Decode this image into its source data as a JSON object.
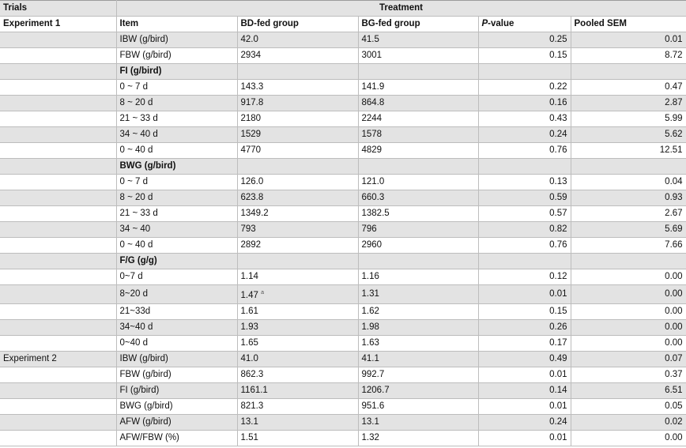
{
  "header": {
    "trials": "Trials",
    "treatment": "Treatment",
    "experiment1": "Experiment 1",
    "item": "Item",
    "bd": "BD-fed group",
    "bg": "BG-fed group",
    "p_italic": "P",
    "p_rest": "-value",
    "sem": "Pooled SEM"
  },
  "rows": [
    {
      "trial": "",
      "item": "IBW (g/bird)",
      "bd": "42.0",
      "bg": "41.5",
      "p": "0.25",
      "sem": "0.01",
      "shade": true
    },
    {
      "trial": "",
      "item": "FBW (g/bird)",
      "bd": "2934",
      "bg": "3001",
      "p": "0.15",
      "sem": "8.72",
      "shade": false
    },
    {
      "trial": "",
      "item": "FI (g/bird)",
      "bd": "",
      "bg": "",
      "p": "",
      "sem": "",
      "shade": true,
      "section": true
    },
    {
      "trial": "",
      "item": "0 ~ 7 d",
      "bd": "143.3",
      "bg": "141.9",
      "p": "0.22",
      "sem": "0.47",
      "shade": false
    },
    {
      "trial": "",
      "item": "8 ~ 20 d",
      "bd": "917.8",
      "bg": "864.8",
      "p": "0.16",
      "sem": "2.87",
      "shade": true
    },
    {
      "trial": "",
      "item": "21 ~ 33 d",
      "bd": "2180",
      "bg": "2244",
      "p": "0.43",
      "sem": "5.99",
      "shade": false
    },
    {
      "trial": "",
      "item": "34 ~ 40 d",
      "bd": "1529",
      "bg": "1578",
      "p": "0.24",
      "sem": "5.62",
      "shade": true
    },
    {
      "trial": "",
      "item": "0 ~ 40 d",
      "bd": "4770",
      "bg": "4829",
      "p": "0.76",
      "sem": "12.51",
      "shade": false
    },
    {
      "trial": "",
      "item": "BWG (g/bird)",
      "bd": "",
      "bg": "",
      "p": "",
      "sem": "",
      "shade": true,
      "section": true
    },
    {
      "trial": "",
      "item": "0 ~ 7 d",
      "bd": "126.0",
      "bg": "121.0",
      "p": "0.13",
      "sem": "0.04",
      "shade": false
    },
    {
      "trial": "",
      "item": "8 ~ 20 d",
      "bd": "623.8",
      "bg": "660.3",
      "p": "0.59",
      "sem": "0.93",
      "shade": true
    },
    {
      "trial": "",
      "item": "21 ~ 33 d",
      "bd": "1349.2",
      "bg": "1382.5",
      "p": "0.57",
      "sem": "2.67",
      "shade": false
    },
    {
      "trial": "",
      "item": "34 ~ 40",
      "bd": "793",
      "bg": "796",
      "p": "0.82",
      "sem": "5.69",
      "shade": true
    },
    {
      "trial": "",
      "item": "0 ~ 40 d",
      "bd": "2892",
      "bg": "2960",
      "p": "0.76",
      "sem": "7.66",
      "shade": false
    },
    {
      "trial": "",
      "item": "F/G (g/g)",
      "bd": "",
      "bg": "",
      "p": "",
      "sem": "",
      "shade": true,
      "section": true
    },
    {
      "trial": "",
      "item": "0~7 d",
      "bd": "1.14",
      "bg": "1.16",
      "p": "0.12",
      "sem": "0.00",
      "shade": false
    },
    {
      "trial": "",
      "item": "8~20 d",
      "bd": "1.47",
      "bd_sup": "a",
      "bg": "1.31",
      "p": "0.01",
      "sem": "0.00",
      "shade": true
    },
    {
      "trial": "",
      "item": "21~33d",
      "bd": "1.61",
      "bg": "1.62",
      "p": "0.15",
      "sem": "0.00",
      "shade": false
    },
    {
      "trial": "",
      "item": "34~40 d",
      "bd": "1.93",
      "bg": "1.98",
      "p": "0.26",
      "sem": "0.00",
      "shade": true
    },
    {
      "trial": "",
      "item": "0~40 d",
      "bd": "1.65",
      "bg": "1.63",
      "p": "0.17",
      "sem": "0.00",
      "shade": false
    },
    {
      "trial": "Experiment 2",
      "item": "IBW (g/bird)",
      "bd": "41.0",
      "bg": "41.1",
      "p": "0.49",
      "sem": "0.07",
      "shade": true
    },
    {
      "trial": "",
      "item": "FBW (g/bird)",
      "bd": "862.3",
      "bg": "992.7",
      "p": "0.01",
      "sem": "0.37",
      "shade": false
    },
    {
      "trial": "",
      "item": "FI (g/bird)",
      "bd": "1161.1",
      "bg": "1206.7",
      "p": "0.14",
      "sem": "6.51",
      "shade": true
    },
    {
      "trial": "",
      "item": "BWG (g/bird)",
      "bd": "821.3",
      "bg": "951.6",
      "p": "0.01",
      "sem": "0.05",
      "shade": false
    },
    {
      "trial": "",
      "item": "AFW (g/bird)",
      "bd": "13.1",
      "bg": "13.1",
      "p": "0.24",
      "sem": "0.02",
      "shade": true
    },
    {
      "trial": "",
      "item": "AFW/FBW (%)",
      "bd": "1.51",
      "bg": "1.32",
      "p": "0.01",
      "sem": "0.00",
      "shade": false
    }
  ]
}
